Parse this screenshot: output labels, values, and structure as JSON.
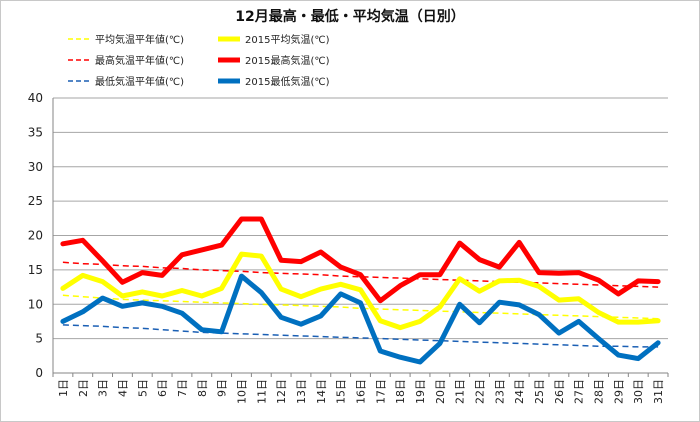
{
  "chart_data": {
    "type": "line",
    "title": "12月最高・最低・平均気温（日別）",
    "xlabel": "",
    "ylabel": "",
    "ylim": [
      0,
      40
    ],
    "yticks": [
      0,
      5,
      10,
      15,
      20,
      25,
      30,
      35,
      40
    ],
    "grid": true,
    "legend_position": "top",
    "categories": [
      "1日",
      "2日",
      "3日",
      "4日",
      "5日",
      "6日",
      "7日",
      "8日",
      "9日",
      "10日",
      "11日",
      "12日",
      "13日",
      "14日",
      "15日",
      "16日",
      "17日",
      "18日",
      "19日",
      "20日",
      "21日",
      "22日",
      "23日",
      "24日",
      "25日",
      "26日",
      "27日",
      "28日",
      "29日",
      "30日",
      "31日"
    ],
    "series": [
      {
        "name": "平均気温平年値(℃)",
        "color": "#ffff00",
        "style": "dashed",
        "values": [
          11.3,
          11.1,
          10.9,
          10.7,
          10.6,
          10.5,
          10.4,
          10.3,
          10.2,
          10.1,
          10.0,
          9.9,
          9.8,
          9.7,
          9.6,
          9.4,
          9.3,
          9.2,
          9.1,
          9.0,
          8.9,
          8.8,
          8.7,
          8.6,
          8.5,
          8.4,
          8.3,
          8.2,
          8.1,
          8.0,
          7.9
        ]
      },
      {
        "name": "2015平均気温(℃)",
        "color": "#ffff00",
        "style": "solid",
        "values": [
          12.3,
          14.2,
          13.3,
          11.2,
          11.8,
          11.2,
          12.0,
          11.2,
          12.3,
          17.3,
          17.0,
          12.2,
          11.1,
          12.2,
          12.9,
          12.1,
          7.6,
          6.6,
          7.5,
          9.6,
          13.7,
          11.9,
          13.4,
          13.5,
          12.6,
          10.6,
          10.8,
          8.8,
          7.4,
          7.4,
          7.6
        ]
      },
      {
        "name": "最高気温平年値(℃)",
        "color": "#ff0000",
        "style": "dashed",
        "values": [
          16.1,
          15.9,
          15.8,
          15.6,
          15.5,
          15.3,
          15.2,
          15.0,
          14.9,
          14.8,
          14.6,
          14.5,
          14.4,
          14.3,
          14.1,
          14.0,
          13.9,
          13.8,
          13.7,
          13.6,
          13.5,
          13.4,
          13.3,
          13.2,
          13.1,
          13.0,
          12.9,
          12.8,
          12.7,
          12.6,
          12.5
        ]
      },
      {
        "name": "2015最高気温(℃)",
        "color": "#ff0000",
        "style": "solid",
        "values": [
          18.8,
          19.3,
          16.3,
          13.2,
          14.6,
          14.2,
          17.2,
          17.9,
          18.6,
          22.4,
          22.4,
          16.4,
          16.2,
          17.6,
          15.4,
          14.3,
          10.5,
          12.7,
          14.3,
          14.3,
          18.9,
          16.5,
          15.4,
          19.0,
          14.6,
          14.5,
          14.6,
          13.5,
          11.5,
          13.4,
          13.3
        ]
      },
      {
        "name": "最低気温平年値(℃)",
        "color": "#1a5fb4",
        "style": "dashed",
        "values": [
          7.0,
          6.9,
          6.8,
          6.6,
          6.5,
          6.3,
          6.1,
          5.9,
          5.8,
          5.7,
          5.6,
          5.5,
          5.4,
          5.3,
          5.2,
          5.1,
          5.0,
          4.9,
          4.8,
          4.7,
          4.6,
          4.5,
          4.4,
          4.3,
          4.2,
          4.1,
          4.0,
          3.9,
          3.9,
          3.8,
          3.8
        ]
      },
      {
        "name": "2015最低気温(℃)",
        "color": "#0070c0",
        "style": "solid",
        "values": [
          7.5,
          8.9,
          10.9,
          9.7,
          10.2,
          9.7,
          8.7,
          6.3,
          6.0,
          14.1,
          11.7,
          8.1,
          7.1,
          8.3,
          11.5,
          10.2,
          3.2,
          2.3,
          1.6,
          4.3,
          10.0,
          7.3,
          10.3,
          9.9,
          8.5,
          5.8,
          7.5,
          5.0,
          2.6,
          2.1,
          4.4
        ]
      }
    ]
  }
}
